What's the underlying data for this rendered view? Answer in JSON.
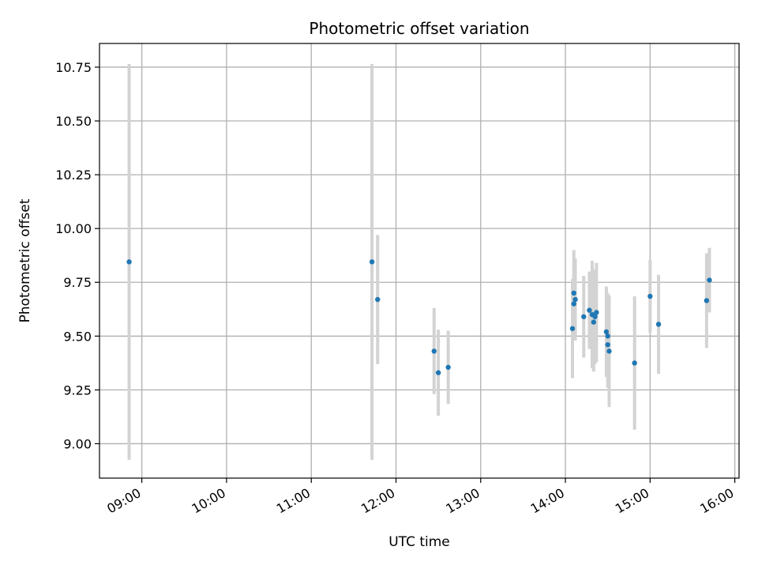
{
  "chart_data": {
    "type": "scatter",
    "title": "Photometric offset variation",
    "xlabel": "UTC time",
    "ylabel": "Photometric offset",
    "x_axis_type": "time",
    "xlim": [
      "08:30",
      "16:03"
    ],
    "ylim": [
      8.84,
      10.86
    ],
    "x_ticks": [
      "09:00",
      "10:00",
      "11:00",
      "12:00",
      "13:00",
      "14:00",
      "15:00",
      "16:00"
    ],
    "y_ticks": [
      9.0,
      9.25,
      9.5,
      9.75,
      10.0,
      10.25,
      10.5,
      10.75
    ],
    "y_tick_labels": [
      "9.00",
      "9.25",
      "9.50",
      "9.75",
      "10.00",
      "10.25",
      "10.50",
      "10.75"
    ],
    "grid": true,
    "colors": {
      "points": "#1f77b4",
      "error_bars": "#d3d3d3",
      "grid": "#b0b0b0"
    },
    "points": [
      {
        "time": "08:51",
        "offset": 9.845,
        "err": 0.92
      },
      {
        "time": "11:43",
        "offset": 9.845,
        "err": 0.92
      },
      {
        "time": "11:47",
        "offset": 9.67,
        "err": 0.3
      },
      {
        "time": "12:27",
        "offset": 9.43,
        "err": 0.2
      },
      {
        "time": "12:30",
        "offset": 9.33,
        "err": 0.2
      },
      {
        "time": "12:37",
        "offset": 9.355,
        "err": 0.17
      },
      {
        "time": "14:05",
        "offset": 9.535,
        "err": 0.23
      },
      {
        "time": "14:06",
        "offset": 9.65,
        "err": 0.17
      },
      {
        "time": "14:06",
        "offset": 9.7,
        "err": 0.2
      },
      {
        "time": "14:07",
        "offset": 9.67,
        "err": 0.19
      },
      {
        "time": "14:13",
        "offset": 9.59,
        "err": 0.19
      },
      {
        "time": "14:17",
        "offset": 9.62,
        "err": 0.18
      },
      {
        "time": "14:19",
        "offset": 9.6,
        "err": 0.25
      },
      {
        "time": "14:20",
        "offset": 9.565,
        "err": 0.23
      },
      {
        "time": "14:21",
        "offset": 9.59,
        "err": 0.22
      },
      {
        "time": "14:22",
        "offset": 9.61,
        "err": 0.23
      },
      {
        "time": "14:29",
        "offset": 9.52,
        "err": 0.21
      },
      {
        "time": "14:30",
        "offset": 9.5,
        "err": 0.2
      },
      {
        "time": "14:30",
        "offset": 9.46,
        "err": 0.2
      },
      {
        "time": "14:31",
        "offset": 9.43,
        "err": 0.26
      },
      {
        "time": "14:49",
        "offset": 9.375,
        "err": 0.31
      },
      {
        "time": "15:00",
        "offset": 9.685,
        "err": 0.17
      },
      {
        "time": "15:06",
        "offset": 9.555,
        "err": 0.23
      },
      {
        "time": "15:40",
        "offset": 9.665,
        "err": 0.22
      },
      {
        "time": "15:42",
        "offset": 9.76,
        "err": 0.15
      }
    ]
  }
}
